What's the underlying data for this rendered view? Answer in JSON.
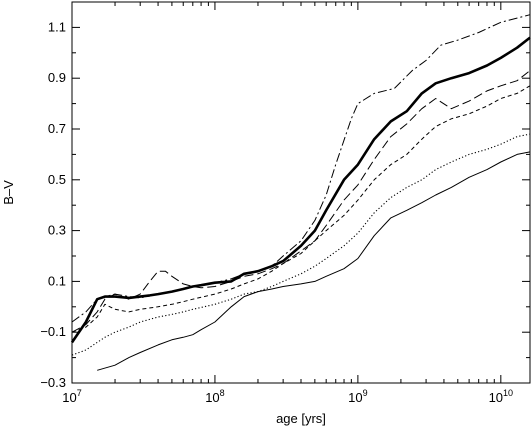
{
  "chart_data": {
    "type": "line",
    "title": "",
    "xlabel": "age [yrs]",
    "ylabel": "B–V",
    "x_scale": "log",
    "xlim": [
      10000000,
      16000000000
    ],
    "ylim": [
      -0.3,
      1.2
    ],
    "x_ticks": [
      {
        "value": 10000000,
        "base": "10",
        "exp": "7"
      },
      {
        "value": 100000000,
        "base": "10",
        "exp": "8"
      },
      {
        "value": 1000000000,
        "base": "10",
        "exp": "9"
      },
      {
        "value": 10000000000,
        "base": "10",
        "exp": "10"
      }
    ],
    "y_ticks": [
      {
        "value": -0.3,
        "label": "−0.3"
      },
      {
        "value": -0.1,
        "label": "−0.1"
      },
      {
        "value": 0.1,
        "label": "0.1"
      },
      {
        "value": 0.3,
        "label": "0.3"
      },
      {
        "value": 0.5,
        "label": "0.5"
      },
      {
        "value": 0.7,
        "label": "0.7"
      },
      {
        "value": 0.9,
        "label": "0.9"
      },
      {
        "value": 1.1,
        "label": "1.1"
      }
    ],
    "grid": false,
    "series": [
      {
        "style": "thick-solid",
        "x": [
          10000000,
          12500000,
          15000000,
          17000000,
          20000000,
          25000000,
          30000000,
          35000000,
          40000000,
          50000000,
          60000000,
          70000000,
          80000000,
          100000000,
          130000000,
          160000000,
          200000000,
          250000000,
          300000000,
          400000000,
          500000000,
          600000000,
          800000000,
          1000000000,
          1300000000,
          1700000000,
          2200000000,
          2800000000,
          3500000000,
          4500000000,
          6000000000,
          8000000000,
          10000000000,
          13000000000,
          16000000000
        ],
        "y": [
          -0.14,
          -0.06,
          0.03,
          0.04,
          0.04,
          0.035,
          0.04,
          0.045,
          0.05,
          0.06,
          0.07,
          0.08,
          0.085,
          0.095,
          0.1,
          0.13,
          0.14,
          0.16,
          0.18,
          0.24,
          0.3,
          0.38,
          0.5,
          0.56,
          0.66,
          0.73,
          0.77,
          0.84,
          0.88,
          0.9,
          0.92,
          0.95,
          0.98,
          1.02,
          1.06
        ]
      },
      {
        "style": "dash-dot",
        "x": [
          10000000,
          12500000,
          15000000,
          17000000,
          20000000,
          25000000,
          30000000,
          40000000,
          50000000,
          60000000,
          70000000,
          100000000,
          130000000,
          160000000,
          200000000,
          250000000,
          300000000,
          400000000,
          500000000,
          600000000,
          700000000,
          900000000,
          1000000000,
          1300000000,
          1800000000,
          2400000000,
          3000000000,
          3800000000,
          5000000000,
          7000000000,
          10000000000,
          16000000000
        ],
        "y": [
          -0.06,
          -0.02,
          0.03,
          0.04,
          0.05,
          0.04,
          0.035,
          0.05,
          0.06,
          0.07,
          0.08,
          0.095,
          0.11,
          0.13,
          0.14,
          0.16,
          0.2,
          0.26,
          0.34,
          0.44,
          0.56,
          0.74,
          0.8,
          0.84,
          0.86,
          0.93,
          0.97,
          1.03,
          1.05,
          1.08,
          1.12,
          1.15
        ]
      },
      {
        "style": "long-dash",
        "x": [
          10000000,
          12500000,
          15000000,
          17000000,
          20000000,
          25000000,
          30000000,
          35000000,
          40000000,
          45000000,
          50000000,
          60000000,
          70000000,
          80000000,
          100000000,
          130000000,
          160000000,
          200000000,
          250000000,
          300000000,
          400000000,
          500000000,
          600000000,
          800000000,
          1000000000,
          1300000000,
          1700000000,
          2200000000,
          2800000000,
          3500000000,
          4500000000,
          6000000000,
          8000000000,
          10000000000,
          13000000000,
          16000000000
        ],
        "y": [
          -0.1,
          -0.07,
          -0.02,
          0.03,
          0.05,
          0.03,
          0.05,
          0.1,
          0.14,
          0.14,
          0.12,
          0.09,
          0.08,
          0.075,
          0.08,
          0.1,
          0.12,
          0.13,
          0.15,
          0.17,
          0.22,
          0.26,
          0.32,
          0.42,
          0.48,
          0.58,
          0.67,
          0.72,
          0.78,
          0.82,
          0.78,
          0.81,
          0.85,
          0.87,
          0.89,
          0.93
        ]
      },
      {
        "style": "short-dash",
        "x": [
          10000000,
          12500000,
          15000000,
          17000000,
          20000000,
          25000000,
          30000000,
          40000000,
          50000000,
          60000000,
          70000000,
          100000000,
          130000000,
          160000000,
          200000000,
          250000000,
          300000000,
          400000000,
          500000000,
          600000000,
          800000000,
          1000000000,
          1300000000,
          1700000000,
          2200000000,
          2800000000,
          3500000000,
          4500000000,
          6000000000,
          8000000000,
          10000000000,
          13000000000,
          16000000000
        ],
        "y": [
          -0.1,
          -0.08,
          -0.04,
          0.01,
          -0.01,
          -0.02,
          -0.01,
          0.0,
          0.01,
          0.02,
          0.03,
          0.05,
          0.07,
          0.09,
          0.11,
          0.14,
          0.17,
          0.21,
          0.26,
          0.3,
          0.36,
          0.42,
          0.5,
          0.56,
          0.6,
          0.66,
          0.71,
          0.74,
          0.76,
          0.79,
          0.82,
          0.84,
          0.87
        ]
      },
      {
        "style": "dotted",
        "x": [
          10000000,
          12500000,
          15000000,
          17000000,
          20000000,
          25000000,
          30000000,
          40000000,
          50000000,
          60000000,
          70000000,
          100000000,
          130000000,
          160000000,
          200000000,
          250000000,
          300000000,
          400000000,
          500000000,
          600000000,
          800000000,
          1000000000,
          1300000000,
          1700000000,
          2200000000,
          2800000000,
          3500000000,
          4500000000,
          6000000000,
          8000000000,
          10000000000,
          13000000000,
          16000000000
        ],
        "y": [
          -0.19,
          -0.17,
          -0.14,
          -0.12,
          -0.1,
          -0.08,
          -0.06,
          -0.04,
          -0.03,
          -0.02,
          -0.01,
          0.01,
          0.03,
          0.05,
          0.06,
          0.08,
          0.1,
          0.13,
          0.16,
          0.19,
          0.24,
          0.29,
          0.37,
          0.43,
          0.47,
          0.5,
          0.54,
          0.57,
          0.6,
          0.62,
          0.64,
          0.67,
          0.68
        ]
      },
      {
        "style": "thin-solid",
        "x": [
          15000000,
          20000000,
          25000000,
          30000000,
          40000000,
          50000000,
          60000000,
          70000000,
          80000000,
          100000000,
          130000000,
          160000000,
          200000000,
          250000000,
          300000000,
          400000000,
          500000000,
          600000000,
          800000000,
          1000000000,
          1300000000,
          1700000000,
          2200000000,
          2800000000,
          3500000000,
          4500000000,
          6000000000,
          8000000000,
          10000000000,
          13000000000,
          16000000000
        ],
        "y": [
          -0.25,
          -0.23,
          -0.2,
          -0.18,
          -0.15,
          -0.13,
          -0.12,
          -0.11,
          -0.09,
          -0.06,
          0.0,
          0.04,
          0.06,
          0.07,
          0.08,
          0.09,
          0.1,
          0.12,
          0.15,
          0.19,
          0.28,
          0.35,
          0.38,
          0.41,
          0.44,
          0.47,
          0.51,
          0.54,
          0.57,
          0.6,
          0.61
        ]
      }
    ]
  }
}
